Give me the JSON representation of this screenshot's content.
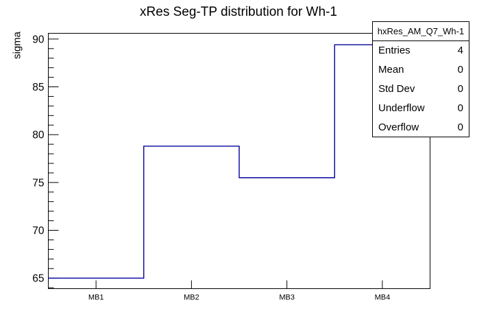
{
  "title": "xRes Seg-TP distribution for Wh-1",
  "stats_box": {
    "header": "hxRes_AM_Q7_Wh-1",
    "rows": [
      {
        "label": "Entries",
        "value": "4"
      },
      {
        "label": "Mean",
        "value": "0"
      },
      {
        "label": "Std Dev",
        "value": "0"
      },
      {
        "label": "Underflow",
        "value": "0"
      },
      {
        "label": "Overflow",
        "value": "0"
      }
    ]
  },
  "chart_data": {
    "type": "bar",
    "subtype": "step-outline-histogram",
    "title": "xRes Seg-TP distribution for Wh-1",
    "categories": [
      "MB1",
      "MB2",
      "MB3",
      "MB4"
    ],
    "values": [
      65.0,
      78.8,
      75.5,
      89.4
    ],
    "xlabel": "",
    "ylabel": "sigma",
    "ylim": [
      63.9,
      90.6
    ],
    "yticks_major": [
      65,
      70,
      75,
      80,
      85,
      90
    ],
    "ytick_minor_step": 1,
    "grid": false,
    "legend_position": "none",
    "line_color": "#000099",
    "axis_color": "#000000",
    "background_color": "#ffffff"
  }
}
